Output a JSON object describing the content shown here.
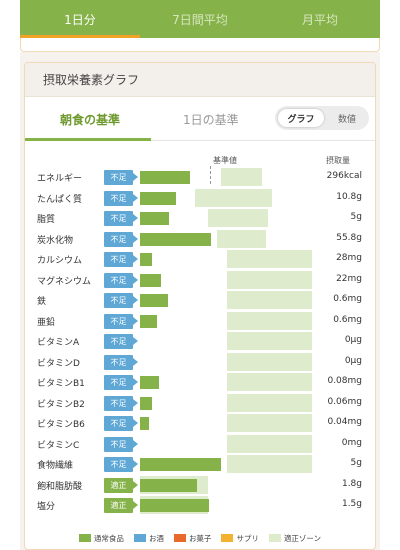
{
  "tabs": [
    {
      "label": "1日分",
      "active": true
    },
    {
      "label": "7日間平均",
      "active": false
    },
    {
      "label": "月平均",
      "active": false
    }
  ],
  "card": {
    "title": "摂取栄養素グラフ",
    "segments": {
      "breakfast": "朝食の基準",
      "daily": "1日の基準"
    },
    "toggle": {
      "graph": "グラフ",
      "numbers": "数値",
      "selected": "グラフ"
    },
    "col_reference": "基準値",
    "col_intake": "摂取量"
  },
  "colors": {
    "normal_food": "#86b24a",
    "alcohol": "#5fa8d6",
    "snacks": "#e8692a",
    "supplement": "#f3b331",
    "adequate_zone": "#deebcc"
  },
  "legend": [
    {
      "label": "通常食品",
      "color": "#86b24a"
    },
    {
      "label": "お酒",
      "color": "#5fa8d6"
    },
    {
      "label": "お菓子",
      "color": "#e8692a"
    },
    {
      "label": "サプリ",
      "color": "#f3b331"
    },
    {
      "label": "適正ゾーン",
      "color": "#deebcc"
    }
  ],
  "nutrients": [
    {
      "name": "エネルギー",
      "status": "不足",
      "amount": "296kcal",
      "intake_fraction": 0.29
    },
    {
      "name": "たんぱく質",
      "status": "不足",
      "amount": "10.8g",
      "intake_fraction": 0.21
    },
    {
      "name": "脂質",
      "status": "不足",
      "amount": "5g",
      "intake_fraction": 0.17
    },
    {
      "name": "炭水化物",
      "status": "不足",
      "amount": "55.8g",
      "intake_fraction": 0.41
    },
    {
      "name": "カルシウム",
      "status": "不足",
      "amount": "28mg",
      "intake_fraction": 0.07
    },
    {
      "name": "マグネシウム",
      "status": "不足",
      "amount": "22mg",
      "intake_fraction": 0.12
    },
    {
      "name": "鉄",
      "status": "不足",
      "amount": "0.6mg",
      "intake_fraction": 0.16
    },
    {
      "name": "亜鉛",
      "status": "不足",
      "amount": "0.6mg",
      "intake_fraction": 0.1
    },
    {
      "name": "ビタミンA",
      "status": "不足",
      "amount": "0μg",
      "intake_fraction": 0.0
    },
    {
      "name": "ビタミンD",
      "status": "不足",
      "amount": "0μg",
      "intake_fraction": 0.0
    },
    {
      "name": "ビタミンB1",
      "status": "不足",
      "amount": "0.08mg",
      "intake_fraction": 0.11
    },
    {
      "name": "ビタミンB2",
      "status": "不足",
      "amount": "0.06mg",
      "intake_fraction": 0.07
    },
    {
      "name": "ビタミンB6",
      "status": "不足",
      "amount": "0.04mg",
      "intake_fraction": 0.05
    },
    {
      "name": "ビタミンC",
      "status": "不足",
      "amount": "0mg",
      "intake_fraction": 0.0
    },
    {
      "name": "食物繊維",
      "status": "不足",
      "amount": "5g",
      "intake_fraction": 0.47
    },
    {
      "name": "飽和脂肪酸",
      "status": "適正",
      "amount": "1.8g",
      "intake_fraction": 0.33
    },
    {
      "name": "塩分",
      "status": "適正",
      "amount": "1.5g",
      "intake_fraction": 0.4
    }
  ]
}
